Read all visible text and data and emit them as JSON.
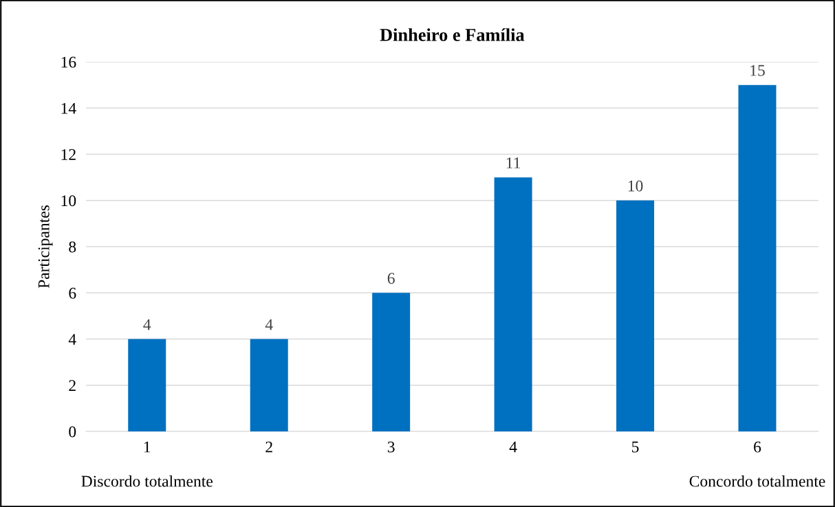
{
  "chart_data": {
    "type": "bar",
    "title": "Dinheiro e Família",
    "ylabel": "Participantes",
    "categories": [
      "1",
      "2",
      "3",
      "4",
      "5",
      "6"
    ],
    "values": [
      4,
      4,
      6,
      11,
      10,
      15
    ],
    "color": "#0070c0",
    "ylim": [
      0,
      16
    ],
    "yticks": [
      0,
      2,
      4,
      6,
      8,
      10,
      12,
      14,
      16
    ],
    "grid": "y",
    "data_labels": true,
    "annotations": [
      "Discordo totalmente",
      "Concordo totalmente"
    ]
  }
}
